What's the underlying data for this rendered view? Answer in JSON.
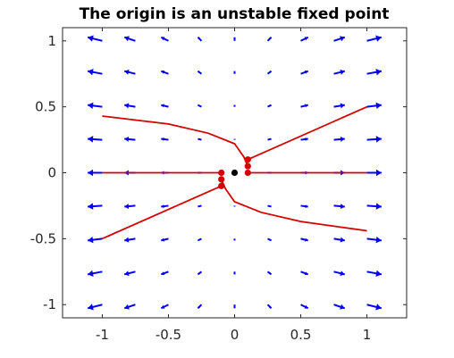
{
  "chart_data": {
    "type": "quiver",
    "title": "The origin is an unstable fixed point",
    "xlabel": "",
    "ylabel": "",
    "xlim": [
      -1.3,
      1.3
    ],
    "ylim": [
      -1.1,
      1.1
    ],
    "xticks": [
      -1,
      -0.5,
      0,
      0.5,
      1
    ],
    "xtick_labels": [
      "-1",
      "-0.5",
      "0",
      "0.5",
      "1"
    ],
    "yticks": [
      -1,
      -0.5,
      0,
      0.5,
      1
    ],
    "ytick_labels": [
      "-1",
      "-0.5",
      "0",
      "0.5",
      "1"
    ],
    "grid": false,
    "colors": {
      "vector_field": "#0000ff",
      "trajectories": "#d40000",
      "origin": "#000000",
      "axes": "#262626"
    },
    "vector_field": {
      "description_system": "dx/dt = x, dy/dt = -x*y-ish field; arrows point away horizontally",
      "x_grid": [
        -1,
        -0.75,
        -0.5,
        -0.25,
        0,
        0.25,
        0.5,
        0.75,
        1
      ],
      "y_grid": [
        -1,
        -0.75,
        -0.5,
        -0.25,
        0,
        0.25,
        0.5,
        0.75,
        1
      ]
    },
    "fixed_point": {
      "x": 0,
      "y": 0
    },
    "trajectories": [
      {
        "start": [
          0.1,
          0.0
        ],
        "points": [
          [
            0.1,
            0.0
          ],
          [
            1.0,
            0.0
          ]
        ]
      },
      {
        "start": [
          -0.1,
          0.0
        ],
        "points": [
          [
            -0.1,
            0.0
          ],
          [
            -1.0,
            0.0
          ]
        ]
      },
      {
        "start": [
          0.1,
          0.1
        ],
        "points": [
          [
            0.1,
            0.1
          ],
          [
            1.0,
            0.5
          ]
        ]
      },
      {
        "start": [
          -0.1,
          -0.1
        ],
        "points": [
          [
            -0.1,
            -0.1
          ],
          [
            -1.0,
            -0.5
          ]
        ]
      },
      {
        "start": [
          0.1,
          0.05
        ],
        "points": [
          [
            0.1,
            0.05
          ],
          [
            0.07,
            0.12
          ],
          [
            0.0,
            0.22
          ],
          [
            -0.2,
            0.3
          ],
          [
            -0.5,
            0.37
          ],
          [
            -1.0,
            0.43
          ]
        ]
      },
      {
        "start": [
          -0.1,
          -0.05
        ],
        "points": [
          [
            -0.1,
            -0.05
          ],
          [
            -0.07,
            -0.12
          ],
          [
            0.0,
            -0.22
          ],
          [
            0.2,
            -0.3
          ],
          [
            0.5,
            -0.37
          ],
          [
            1.0,
            -0.44
          ]
        ]
      }
    ],
    "start_points": [
      [
        0.1,
        0.1
      ],
      [
        0.1,
        0.05
      ],
      [
        0.1,
        0.0
      ],
      [
        -0.1,
        0.0
      ],
      [
        -0.1,
        -0.05
      ],
      [
        -0.1,
        -0.1
      ]
    ]
  }
}
